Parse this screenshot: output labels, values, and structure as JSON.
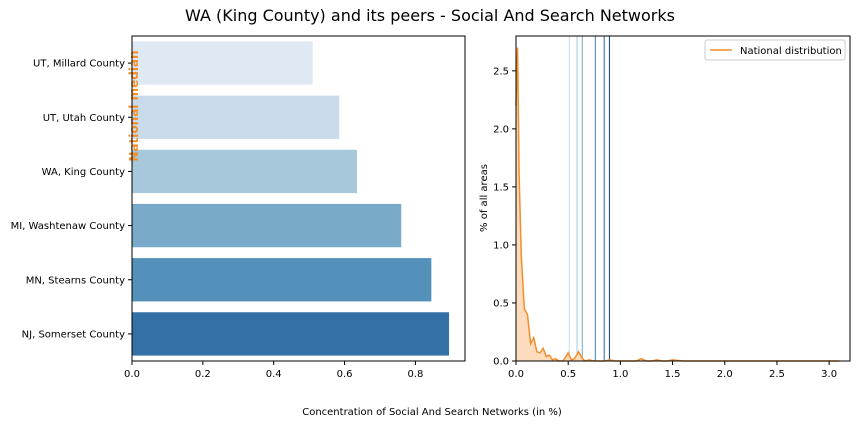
{
  "title": "WA (King County) and its peers - Social And Search Networks",
  "xlabel": "Concentration of Social And Search Networks (in %)",
  "colors": {
    "median": "#f28e2b",
    "dist_line": "#f28e2b",
    "dist_fill": "#fcdcbc",
    "bars": [
      "#dfe9f4",
      "#c9dbea",
      "#a6c8da",
      "#79aac9",
      "#5390ba",
      "#3370a6"
    ],
    "vlines": [
      "#c6dcec",
      "#9ec8e1",
      "#6da6cf",
      "#3b7db8",
      "#2865a8",
      "#0f3f7a"
    ]
  },
  "chart_data": [
    {
      "type": "bar",
      "orientation": "horizontal",
      "categories": [
        "UT, Millard County",
        "UT, Utah County",
        "WA, King County",
        "MI, Washtenaw County",
        "MN, Stearns County",
        "NJ, Somerset County"
      ],
      "values": [
        0.51,
        0.585,
        0.635,
        0.76,
        0.845,
        0.895
      ],
      "xlim": [
        0,
        0.94
      ],
      "xticks": [
        "0.0",
        "0.2",
        "0.4",
        "0.6",
        "0.8"
      ],
      "annotation": "National median",
      "median_value": 0.0,
      "grid": false
    },
    {
      "type": "area",
      "ylabel": "% of all areas",
      "legend": "National distribution",
      "legend_position": "top-right",
      "xlim": [
        0,
        3.2
      ],
      "ylim": [
        0,
        2.8
      ],
      "xticks": [
        "0.0",
        "0.5",
        "1.0",
        "1.5",
        "2.0",
        "2.5",
        "3.0"
      ],
      "yticks": [
        "0.0",
        "0.5",
        "1.0",
        "1.5",
        "2.0",
        "2.5"
      ],
      "x": [
        0.0,
        0.015,
        0.03,
        0.05,
        0.08,
        0.11,
        0.14,
        0.17,
        0.2,
        0.23,
        0.26,
        0.29,
        0.32,
        0.35,
        0.38,
        0.41,
        0.45,
        0.5,
        0.53,
        0.56,
        0.6,
        0.63,
        0.66,
        0.7,
        0.75,
        0.8,
        0.85,
        0.9,
        0.95,
        1.0,
        1.1,
        1.15,
        1.2,
        1.25,
        1.3,
        1.35,
        1.4,
        1.45,
        1.5,
        1.6,
        1.8,
        2.0,
        2.5,
        3.1
      ],
      "y": [
        2.2,
        2.7,
        1.6,
        0.92,
        0.45,
        0.4,
        0.15,
        0.2,
        0.08,
        0.07,
        0.11,
        0.04,
        0.05,
        0.01,
        0.02,
        0.0,
        0.0,
        0.07,
        0.01,
        0.02,
        0.08,
        0.03,
        0.0,
        0.01,
        0.0,
        0.0,
        0.0,
        0.01,
        0.0,
        0.0,
        0.0,
        0.0,
        0.02,
        0.0,
        0.0,
        0.01,
        0.0,
        0.0,
        0.01,
        0.0,
        0.0,
        0.0,
        0.0,
        0.0
      ],
      "peer_lines": [
        0.51,
        0.585,
        0.635,
        0.76,
        0.845,
        0.895
      ]
    }
  ]
}
